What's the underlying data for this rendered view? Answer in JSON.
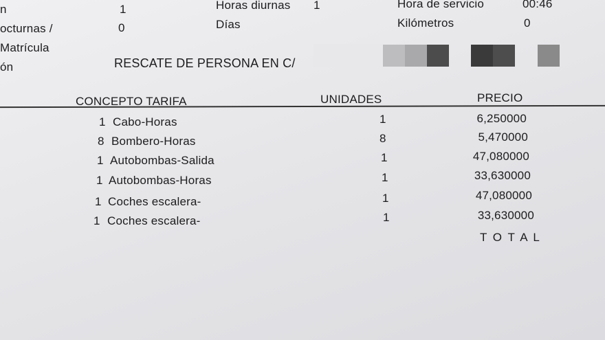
{
  "header": {
    "left_labels": [
      "n",
      "octurnas /",
      "Matrícula",
      "ón"
    ],
    "left_values": [
      "1",
      "0"
    ],
    "mid_labels": [
      "Horas diurnas",
      "Días"
    ],
    "mid_values": [
      "1"
    ],
    "right_labels": [
      "Hora de servicio",
      "Kilómetros"
    ],
    "right_values": [
      "00:46",
      "0"
    ],
    "description": "RESCATE DE PERSONA EN C/"
  },
  "table": {
    "columns": [
      "CONCEPTO TARIFA",
      "UNIDADES",
      "PRECIO"
    ],
    "rows": [
      {
        "qty": "1",
        "concept": "Cabo-Horas",
        "units": "1",
        "price": "6,250000"
      },
      {
        "qty": "8",
        "concept": "Bombero-Horas",
        "units": "8",
        "price": "5,470000"
      },
      {
        "qty": "1",
        "concept": "Autobombas-Salida",
        "units": "1",
        "price": "47,080000"
      },
      {
        "qty": "1",
        "concept": "Autobombas-Horas",
        "units": "1",
        "price": "33,630000"
      },
      {
        "qty": "1",
        "concept": "Coches escalera-",
        "units": "1",
        "price": "47,080000"
      },
      {
        "qty": "1",
        "concept": "Coches escalera-",
        "units": "1",
        "price": "33,630000"
      }
    ],
    "total_label": "T O T A L"
  }
}
